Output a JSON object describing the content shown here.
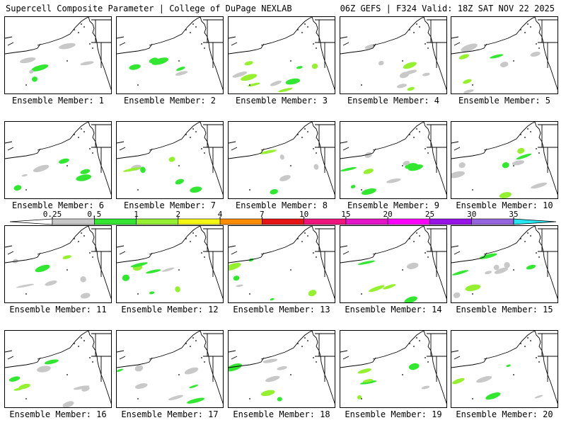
{
  "header": {
    "left": "Supercell Composite Parameter | College of DuPage NEXLAB",
    "right": "06Z GEFS | F324 Valid: 18Z SAT NOV 22 2025"
  },
  "members": [
    {
      "label": "Ensemble Member: 1"
    },
    {
      "label": "Ensemble Member: 2"
    },
    {
      "label": "Ensemble Member: 3"
    },
    {
      "label": "Ensemble Member: 4"
    },
    {
      "label": "Ensemble Member: 5"
    },
    {
      "label": "Ensemble Member: 6"
    },
    {
      "label": "Ensemble Member: 7"
    },
    {
      "label": "Ensemble Member: 8"
    },
    {
      "label": "Ensemble Member: 9"
    },
    {
      "label": "Ensemble Member: 10"
    },
    {
      "label": "Ensemble Member: 11"
    },
    {
      "label": "Ensemble Member: 12"
    },
    {
      "label": "Ensemble Member: 13"
    },
    {
      "label": "Ensemble Member: 14"
    },
    {
      "label": "Ensemble Member: 15"
    },
    {
      "label": "Ensemble Member: 16"
    },
    {
      "label": "Ensemble Member: 17"
    },
    {
      "label": "Ensemble Member: 18"
    },
    {
      "label": "Ensemble Member: 19"
    },
    {
      "label": "Ensemble Member: 20"
    }
  ],
  "colorbar": {
    "ticks": [
      "0.25",
      "0.5",
      "1",
      "2",
      "4",
      "7",
      "10",
      "15",
      "20",
      "25",
      "30",
      "35"
    ],
    "colors": [
      "#c8c8c8",
      "#32e632",
      "#96f032",
      "#f5f514",
      "#ff8c00",
      "#e61414",
      "#f0147d",
      "#e614c8",
      "#ff00ff",
      "#9614e6",
      "#9664dc",
      "#28e6f0"
    ]
  }
}
